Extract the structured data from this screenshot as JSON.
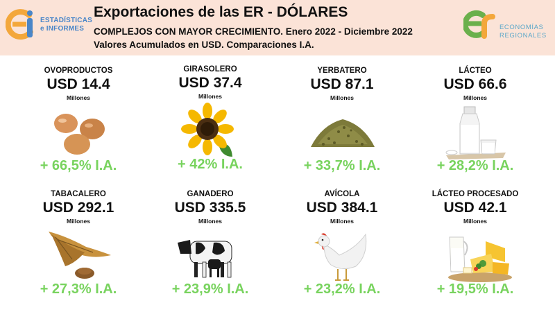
{
  "header": {
    "title": "Exportaciones de las ER - DÓLARES",
    "subtitle_1": "COMPLEJOS CON MAYOR CRECIMIENTO. Enero 2022 - Diciembre 2022",
    "subtitle_2": "Valores Acumulados en USD. Comparaciones I.A."
  },
  "logo_left": {
    "line_1": "ESTADÍSTICAS",
    "line_2": "e INFORMES",
    "icon": "ei-logo-icon"
  },
  "logo_right": {
    "line_1": "ECONOMÍAS",
    "line_2": "REGIONALES",
    "icon": "er-logo-icon"
  },
  "colors": {
    "header_bg": "#fbe3d7",
    "growth": "#78d35e",
    "logo_blue": "#4a86c8",
    "logo_orange": "#f3a73b"
  },
  "cards": [
    {
      "name": "OVOPRODUCTOS",
      "value": "USD 14.4",
      "unit": "Millones",
      "growth": "+ 66,5% I.A.",
      "icon": "eggs-icon"
    },
    {
      "name": "GIRASOLERO",
      "value": "USD 37.4",
      "unit": "Millones",
      "growth": "+ 42% I.A.",
      "icon": "sunflower-icon"
    },
    {
      "name": "YERBATERO",
      "value": "USD 87.1",
      "unit": "Millones",
      "growth": "+ 33,7% I.A.",
      "icon": "yerba-icon"
    },
    {
      "name": "LÁCTEO",
      "value": "USD 66.6",
      "unit": "Millones",
      "growth": "+ 28,2% I.A.",
      "icon": "milk-icon"
    },
    {
      "name": "TABACALERO",
      "value": "USD 292.1",
      "unit": "Millones",
      "growth": "+ 27,3% I.A.",
      "icon": "tobacco-icon"
    },
    {
      "name": "GANADERO",
      "value": "USD 335.5",
      "unit": "Millones",
      "growth": "+ 23,9% I.A.",
      "icon": "cow-icon"
    },
    {
      "name": "AVÍCOLA",
      "value": "USD 384.1",
      "unit": "Millones",
      "growth": "+ 23,2% I.A.",
      "icon": "chicken-icon"
    },
    {
      "name": "LÁCTEO PROCESADO",
      "value": "USD 42.1",
      "unit": "Millones",
      "growth": "+ 19,5% I.A.",
      "icon": "cheese-icon"
    }
  ]
}
